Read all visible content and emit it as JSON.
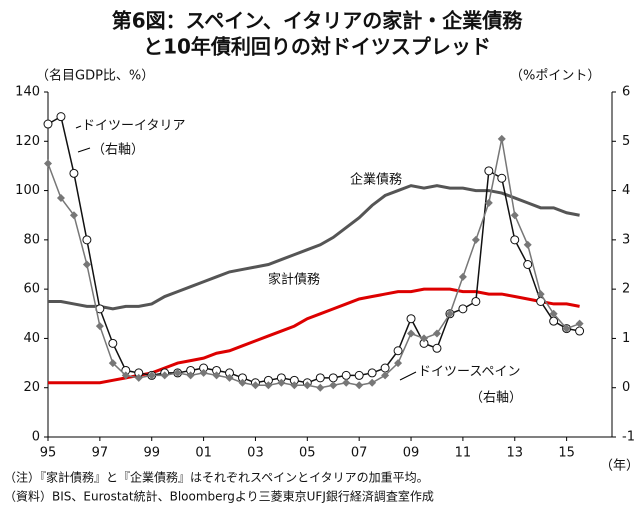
{
  "chart_data": {
    "type": "line",
    "title": [
      "第6図：スペイン、イタリアの家計・企業債務",
      "と10年債利回りの対ドイツスプレッド"
    ],
    "ylabel": "（名目GDP比、%）",
    "y2label": "（%ポイント）",
    "xlabel": "（年）",
    "x": [
      1995,
      1995.5,
      1996,
      1996.5,
      1997,
      1997.5,
      1998,
      1998.5,
      1999,
      1999.5,
      2000,
      2000.5,
      2001,
      2001.5,
      2002,
      2002.5,
      2003,
      2003.5,
      2004,
      2004.5,
      2005,
      2005.5,
      2006,
      2006.5,
      2007,
      2007.5,
      2008,
      2008.5,
      2009,
      2009.5,
      2010,
      2010.5,
      2011,
      2011.5,
      2012,
      2012.5,
      2013,
      2013.5,
      2014,
      2014.5,
      2015,
      2015.5
    ],
    "series": [
      {
        "name": "企業債務",
        "color": "#555555",
        "values": [
          55,
          55,
          54,
          53,
          53,
          52,
          53,
          53,
          54,
          57,
          59,
          61,
          63,
          65,
          67,
          68,
          69,
          70,
          72,
          74,
          76,
          78,
          81,
          85,
          89,
          94,
          98,
          100,
          102,
          101,
          102,
          101,
          101,
          100,
          100,
          99,
          97,
          95,
          93,
          93,
          91,
          90
        ]
      },
      {
        "name": "家計債務",
        "color": "#dd0000",
        "values": [
          22,
          22,
          22,
          22,
          22,
          23,
          24,
          25,
          26,
          28,
          30,
          31,
          32,
          34,
          35,
          37,
          39,
          41,
          43,
          45,
          48,
          50,
          52,
          54,
          56,
          57,
          58,
          59,
          59,
          60,
          60,
          60,
          59,
          59,
          58,
          58,
          57,
          56,
          55,
          54,
          54,
          53
        ]
      },
      {
        "name": "ドイツーイタリア",
        "color": "#111111",
        "axis": "y2",
        "values": [
          5.35,
          5.5,
          4.35,
          3.0,
          1.6,
          0.9,
          0.35,
          0.3,
          0.25,
          0.3,
          0.3,
          0.35,
          0.4,
          0.35,
          0.3,
          0.2,
          0.1,
          0.15,
          0.2,
          0.15,
          0.1,
          0.2,
          0.2,
          0.25,
          0.25,
          0.3,
          0.4,
          0.75,
          1.4,
          0.9,
          0.8,
          1.5,
          1.6,
          1.75,
          4.4,
          4.25,
          3.0,
          2.5,
          1.75,
          1.35,
          1.2,
          1.15
        ]
      },
      {
        "name": "ドイツースペイン",
        "color": "#777777",
        "axis": "y2",
        "values": [
          4.55,
          3.85,
          3.5,
          2.5,
          1.25,
          0.5,
          0.25,
          0.2,
          0.25,
          0.25,
          0.3,
          0.25,
          0.3,
          0.25,
          0.2,
          0.1,
          0.05,
          0.05,
          0.1,
          0.05,
          0.05,
          0.0,
          0.05,
          0.1,
          0.05,
          0.1,
          0.25,
          0.5,
          1.1,
          1.0,
          1.1,
          1.5,
          2.25,
          3.0,
          3.75,
          5.05,
          3.5,
          2.9,
          1.9,
          1.5,
          1.2,
          1.3
        ]
      }
    ],
    "annotations": [
      "（右軸）",
      "（右軸）"
    ],
    "xlim": [
      1995,
      2016.75
    ],
    "xticks": [
      {
        "value": 1995,
        "label": "95"
      },
      {
        "value": 1997,
        "label": "97"
      },
      {
        "value": 1999,
        "label": "99"
      },
      {
        "value": 2001,
        "label": "01"
      },
      {
        "value": 2003,
        "label": "03"
      },
      {
        "value": 2005,
        "label": "05"
      },
      {
        "value": 2007,
        "label": "07"
      },
      {
        "value": 2009,
        "label": "09"
      },
      {
        "value": 2011,
        "label": "11"
      },
      {
        "value": 2013,
        "label": "13"
      },
      {
        "value": 2015,
        "label": "15"
      }
    ],
    "ylim": [
      0,
      140
    ],
    "yticks": [
      0,
      20,
      40,
      60,
      80,
      100,
      120,
      140
    ],
    "y2lim": [
      -1,
      6
    ],
    "y2ticks": [
      -1,
      0,
      1,
      2,
      3,
      4,
      5,
      6
    ],
    "notes": [
      "（注）『家計債務』と『企業債務』はそれぞれスペインとイタリアの加重平均。",
      "（資料）BIS、Eurostat統計、Bloombergより三菱東京UFJ銀行経済調査室作成"
    ]
  }
}
